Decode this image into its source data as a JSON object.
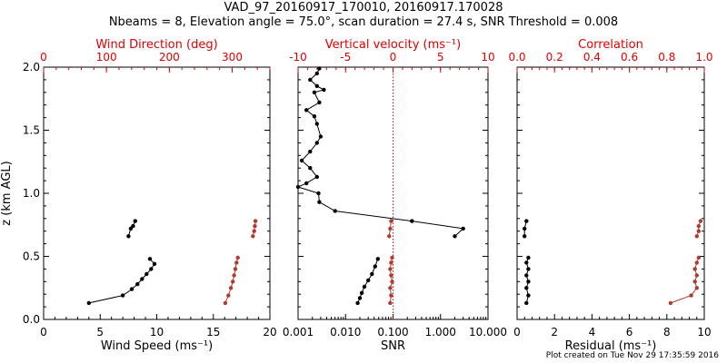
{
  "page": {
    "title_line1": "VAD_97_20160917_170010, 20160917.170028",
    "title_line2": "Nbeams = 8, Elevation angle = 75.0°, scan duration = 27.4 s, SNR Threshold = 0.008",
    "footer": "Plot created on Tue Nov 29 17:35:59 2016"
  },
  "colors": {
    "axes": "#000000",
    "red": "#c0392b",
    "series_black": "#000000",
    "series_red": "#b03a2e",
    "top_axis": "#e00000"
  },
  "chart_data": [
    {
      "type": "line",
      "xlabel": "Wind Speed (ms⁻¹)",
      "x2label": "Wind Direction (deg)",
      "ylabel": "z (km AGL)",
      "xlim": [
        0,
        20
      ],
      "x2lim": [
        0,
        360
      ],
      "ylim": [
        0,
        2
      ],
      "xticks": [
        0,
        5,
        10,
        15,
        20
      ],
      "x2ticks": [
        0,
        100,
        200,
        300
      ],
      "yticks": [
        "0.0",
        "0.5",
        "1.0",
        "1.5",
        "2.0"
      ],
      "series": [
        {
          "axis": "bottom",
          "color": "black",
          "segments": [
            {
              "x": [
                4.0,
                7.0,
                7.8,
                8.3,
                8.7,
                9.1,
                9.5,
                9.8,
                9.4
              ],
              "y": [
                0.13,
                0.19,
                0.24,
                0.28,
                0.32,
                0.36,
                0.4,
                0.44,
                0.48
              ]
            },
            {
              "x": [
                7.5,
                7.7,
                7.9,
                8.1
              ],
              "y": [
                0.66,
                0.72,
                0.74,
                0.78
              ]
            }
          ]
        },
        {
          "axis": "top",
          "color": "red",
          "segments": [
            {
              "x": [
                289,
                294,
                298,
                301,
                303,
                305,
                307,
                309
              ],
              "y": [
                0.13,
                0.19,
                0.25,
                0.3,
                0.35,
                0.4,
                0.45,
                0.49
              ]
            },
            {
              "x": [
                333,
                335,
                336,
                337
              ],
              "y": [
                0.66,
                0.7,
                0.74,
                0.78
              ]
            }
          ]
        }
      ]
    },
    {
      "type": "line",
      "xlabel": "SNR",
      "x2label": "Vertical velocity (ms⁻¹)",
      "xscale": "log",
      "xlim": [
        0.001,
        10
      ],
      "x2lim": [
        -10,
        10
      ],
      "ylim": [
        0,
        2
      ],
      "xticks": [
        "0.001",
        "0.010",
        "0.100",
        "1.000",
        "10.000"
      ],
      "x2ticks": [
        -10,
        -5,
        0,
        5,
        10
      ],
      "reference_line": {
        "axis": "top",
        "x": 0,
        "style": "dotted",
        "color": "red"
      },
      "series": [
        {
          "axis": "bottom",
          "color": "black",
          "segments": [
            {
              "x": [
                0.018,
                0.02,
                0.022,
                0.025,
                0.03,
                0.036,
                0.042,
                0.048
              ],
              "y": [
                0.13,
                0.17,
                0.21,
                0.26,
                0.31,
                0.36,
                0.42,
                0.48
              ]
            },
            {
              "x": [
                2.0,
                3.0,
                0.25,
                0.006,
                0.0028,
                0.0027,
                0.001,
                0.0015,
                0.0025,
                0.0018,
                0.0012,
                0.0018,
                0.0025,
                0.003,
                0.0025,
                0.0022,
                0.0015,
                0.0028,
                0.0022,
                0.0035,
                0.0025,
                0.0018,
                0.0025,
                0.0028
              ],
              "y": [
                0.66,
                0.72,
                0.78,
                0.86,
                0.93,
                1.0,
                1.05,
                1.08,
                1.13,
                1.2,
                1.26,
                1.33,
                1.4,
                1.45,
                1.55,
                1.61,
                1.66,
                1.72,
                1.8,
                1.82,
                1.85,
                1.9,
                1.95,
                1.99
              ]
            }
          ]
        },
        {
          "axis": "top",
          "color": "red",
          "segments": [
            {
              "x": [
                -0.3,
                -0.2,
                -0.3,
                -0.1,
                -0.2,
                -0.3,
                -0.2,
                -0.1
              ],
              "y": [
                0.13,
                0.19,
                0.25,
                0.3,
                0.35,
                0.4,
                0.45,
                0.49
              ]
            },
            {
              "x": [
                -0.4,
                -0.3,
                -0.2
              ],
              "y": [
                0.66,
                0.72,
                0.78
              ]
            }
          ]
        }
      ]
    },
    {
      "type": "line",
      "xlabel": "Residual (ms⁻¹)",
      "x2label": "Correlation",
      "xlim": [
        0,
        10
      ],
      "x2lim": [
        0,
        1
      ],
      "ylim": [
        0,
        2
      ],
      "xticks": [
        0,
        2,
        4,
        6,
        8,
        10
      ],
      "x2ticks": [
        "0.0",
        "0.2",
        "0.4",
        "0.6",
        "0.8",
        "1.0"
      ],
      "series": [
        {
          "axis": "bottom",
          "color": "black",
          "segments": [
            {
              "x": [
                0.5,
                0.6,
                0.5,
                0.6,
                0.5,
                0.6,
                0.5,
                0.6
              ],
              "y": [
                0.13,
                0.19,
                0.25,
                0.3,
                0.35,
                0.4,
                0.45,
                0.49
              ]
            },
            {
              "x": [
                0.4,
                0.4,
                0.5
              ],
              "y": [
                0.66,
                0.72,
                0.78
              ]
            }
          ]
        },
        {
          "axis": "top",
          "color": "red",
          "segments": [
            {
              "x": [
                0.82,
                0.93,
                0.96,
                0.95,
                0.96,
                0.95,
                0.96,
                0.97
              ],
              "y": [
                0.13,
                0.19,
                0.25,
                0.3,
                0.35,
                0.4,
                0.45,
                0.49
              ]
            },
            {
              "x": [
                0.96,
                0.97,
                0.97,
                0.98
              ],
              "y": [
                0.66,
                0.7,
                0.74,
                0.78
              ]
            }
          ]
        }
      ]
    }
  ]
}
